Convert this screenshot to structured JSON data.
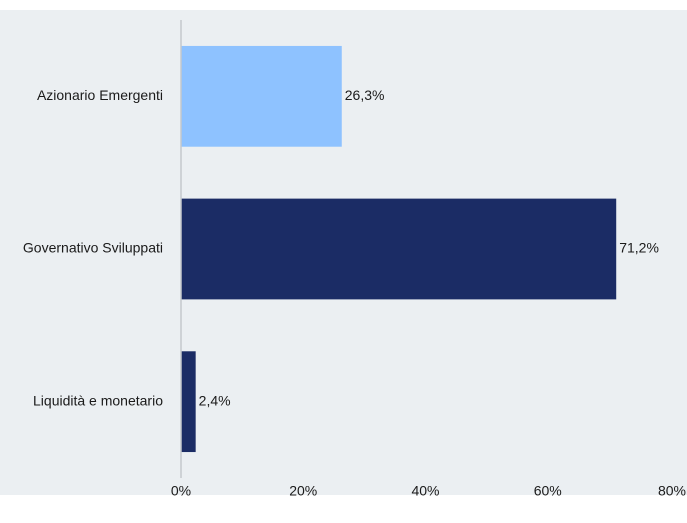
{
  "chart_data": {
    "type": "bar",
    "orientation": "horizontal",
    "categories": [
      "Azionario Emergenti",
      "Governativo Sviluppati",
      "Liquidità e monetario"
    ],
    "values": [
      26.3,
      71.2,
      2.4
    ],
    "data_labels": [
      "26,3%",
      "71,2%",
      "2,4%"
    ],
    "bar_colors": [
      "#8ec2ff",
      "#1b2c65",
      "#1b2c65"
    ],
    "xlim": [
      0,
      80
    ],
    "x_ticks": [
      0,
      20,
      40,
      60,
      80
    ],
    "x_tick_labels": [
      "0%",
      "20%",
      "40%",
      "60%",
      "80%"
    ],
    "title": "",
    "xlabel": "",
    "ylabel": "",
    "grid": false,
    "legend": "none",
    "background_color": "#ebeff2",
    "axis_color": "#c4c8cc"
  }
}
